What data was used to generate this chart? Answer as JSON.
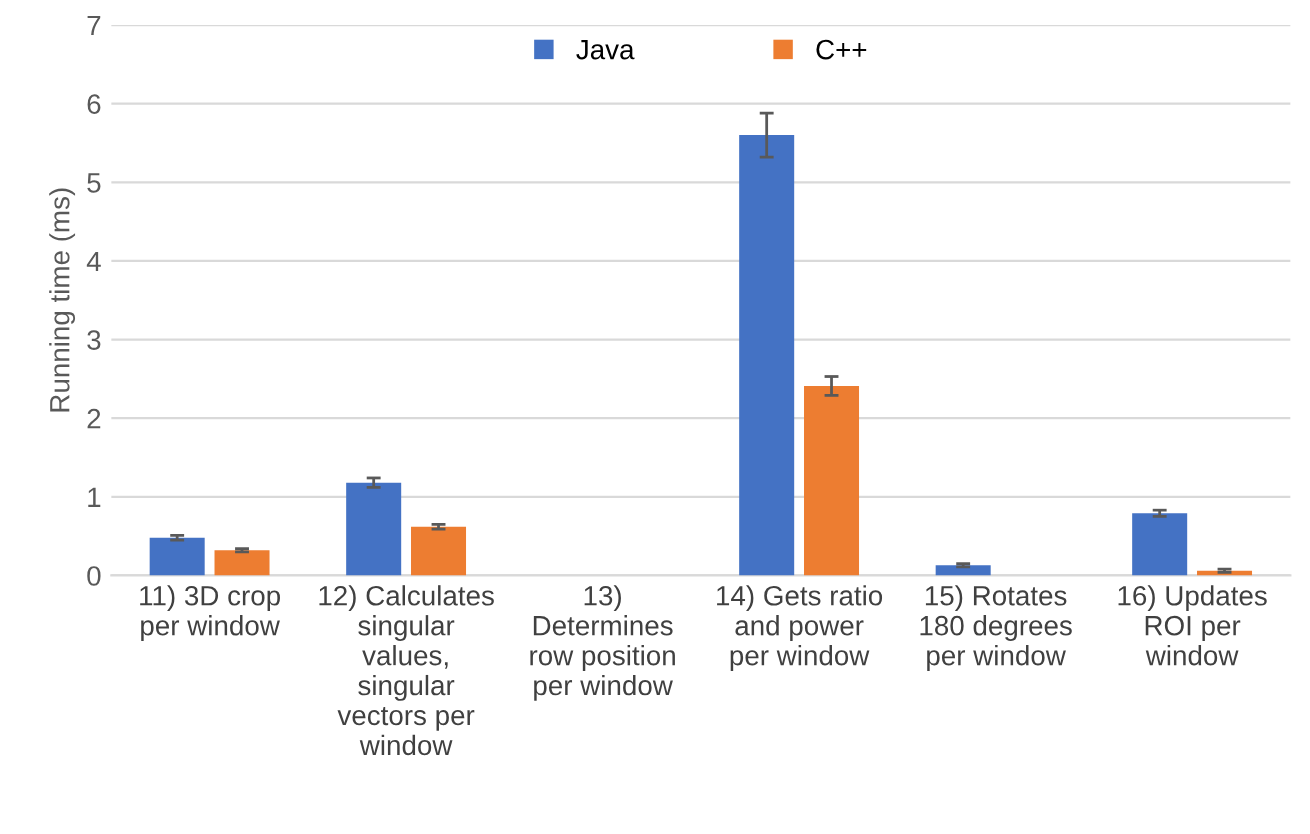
{
  "chart_data": {
    "type": "bar",
    "ylabel": "Running time (ms)",
    "categories": [
      "11) 3D crop\nper window",
      "12) Calculates\nsingular\nvalues,\nsingular\nvectors per\nwindow",
      "13)\nDetermines\nrow position\nper window",
      "14) Gets ratio\nand power\nper window",
      "15) Rotates\n180 degrees\nper window",
      "16) Updates\nROI per\nwindow"
    ],
    "series": [
      {
        "name": "Java",
        "color": "#4472c4",
        "values": [
          0.48,
          1.18,
          null,
          5.6,
          0.13,
          0.79
        ],
        "errors": [
          0.03,
          0.06,
          null,
          0.28,
          0.02,
          0.04
        ]
      },
      {
        "name": "C++",
        "color": "#ed7d31",
        "values": [
          0.32,
          0.62,
          null,
          2.41,
          null,
          0.06
        ],
        "errors": [
          0.02,
          0.03,
          null,
          0.12,
          null,
          0.02
        ]
      }
    ],
    "ylim": [
      0,
      7
    ],
    "yticks": [
      0,
      1,
      2,
      3,
      4,
      5,
      6,
      7
    ],
    "grid": "y",
    "legend": "top"
  }
}
